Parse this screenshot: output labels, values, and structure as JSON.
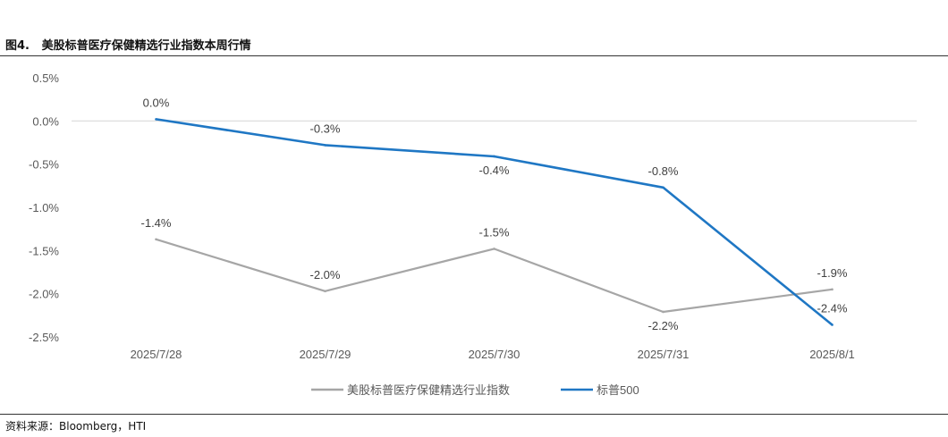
{
  "figure": {
    "number": "图4.",
    "title": "美股标普医疗保健精选行业指数本周行情"
  },
  "source": {
    "label": "资料来源：",
    "text": "Bloomberg，HTI"
  },
  "colors": {
    "sector_index": "#a6a6a6",
    "sp500": "#1f77c4",
    "grid": "#d9d9d9",
    "axis_text": "#595959"
  },
  "chart_data": {
    "type": "line",
    "title": "",
    "xlabel": "",
    "ylabel": "",
    "categories": [
      "2025/7/28",
      "2025/7/29",
      "2025/7/30",
      "2025/7/31",
      "2025/8/1"
    ],
    "ylim": [
      -2.5,
      0.5
    ],
    "yticks": [
      0.5,
      0.0,
      -0.5,
      -1.0,
      -1.5,
      -2.0,
      -2.5
    ],
    "ytick_labels": [
      "0.5%",
      "0.0%",
      "-0.5%",
      "-1.0%",
      "-1.5%",
      "-2.0%",
      "-2.5%"
    ],
    "grid": "horizontal at 0.0% only",
    "legend_position": "bottom",
    "series": [
      {
        "name": "美股标普医疗保健精选行业指数",
        "values": [
          -1.37,
          -1.97,
          -1.48,
          -2.21,
          -1.95
        ],
        "labels": [
          "-1.4%",
          "-2.0%",
          "-1.5%",
          "-2.2%",
          "-1.9%"
        ],
        "label_position": [
          "above",
          "above",
          "above",
          "below",
          "above"
        ]
      },
      {
        "name": "标普500",
        "values": [
          0.02,
          -0.28,
          -0.41,
          -0.77,
          -2.36
        ],
        "labels": [
          "0.0%",
          "-0.3%",
          "-0.4%",
          "-0.8%",
          "-2.4%"
        ],
        "label_position": [
          "above",
          "above",
          "below",
          "above",
          "above"
        ]
      }
    ]
  }
}
